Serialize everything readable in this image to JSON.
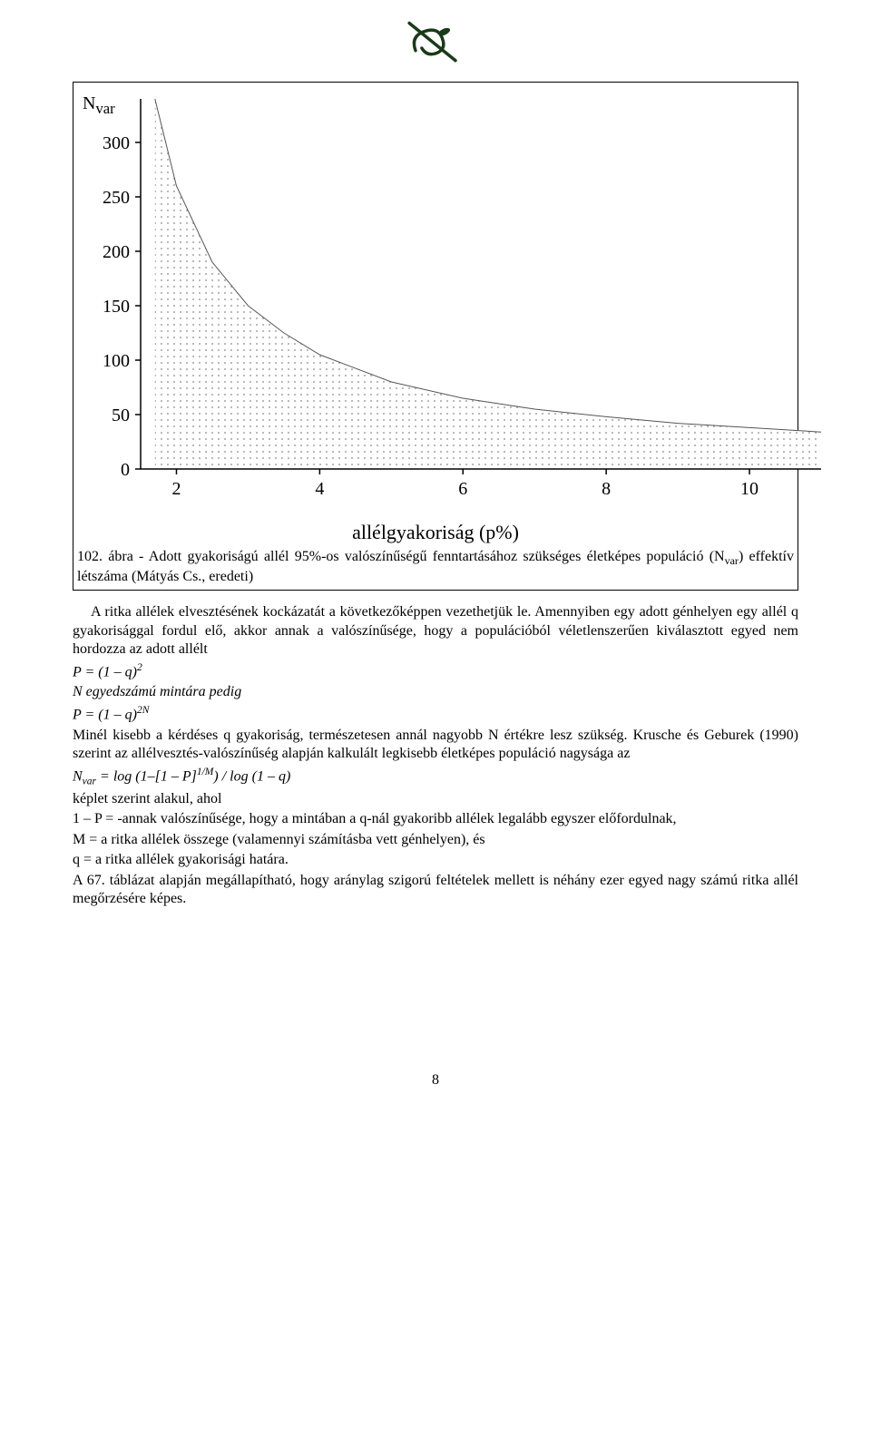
{
  "chart": {
    "type": "area",
    "ylabel_html": "N<sub>var</sub>",
    "xlabel": "allélgyakoriság (p%)",
    "x_ticks": [
      2,
      4,
      6,
      8,
      10
    ],
    "y_ticks": [
      0,
      50,
      100,
      150,
      200,
      250,
      300
    ],
    "xlim": [
      1.5,
      11
    ],
    "ylim": [
      0,
      340
    ],
    "curve_points": [
      {
        "x": 1.7,
        "y": 340
      },
      {
        "x": 2.0,
        "y": 260
      },
      {
        "x": 2.5,
        "y": 190
      },
      {
        "x": 3.0,
        "y": 150
      },
      {
        "x": 3.5,
        "y": 125
      },
      {
        "x": 4.0,
        "y": 105
      },
      {
        "x": 5.0,
        "y": 80
      },
      {
        "x": 6.0,
        "y": 65
      },
      {
        "x": 7.0,
        "y": 55
      },
      {
        "x": 8.0,
        "y": 48
      },
      {
        "x": 9.0,
        "y": 42
      },
      {
        "x": 10.0,
        "y": 38
      },
      {
        "x": 11.0,
        "y": 34
      }
    ],
    "fill_color": "#d9d9d9",
    "dot_color": "#888888",
    "axis_color": "#000000",
    "axis_width": 1.5,
    "tick_fontsize": 20,
    "label_fontsize": 22
  },
  "caption": {
    "prefix": "102. ábra - ",
    "text_html": "Adott gyakoriságú allél 95%-os valószínűségű fenntartásához szükséges életképes populáció (N<sub>var</sub>) effektív létszáma (Mátyás Cs., eredeti)"
  },
  "body": {
    "p1": "A ritka allélek elvesztésének kockázatát a következőképpen vezethetjük le. Amennyiben egy adott génhelyen egy allél q gyakorisággal fordul elő, akkor annak a valószínűsége, hogy a populációból véletlenszerűen kiválasztott egyed nem hordozza az adott allélt",
    "f1_html": "P = (1 – q)<sup>2</sup>",
    "p2": "N egyedszámú mintára pedig",
    "f2_html": "P = (1 – q)<sup>2N</sup>",
    "p3": "Minél kisebb a kérdéses q gyakoriság, természetesen annál nagyobb N értékre lesz szükség. Krusche és Geburek (1990) szerint az allélvesztés-valószínűség alapján kalkulált legkisebb életképes populáció nagysága az",
    "f3_html": "N<sub class=\"subvar\">var</sub> = log (1–[1 – P]<sup>1/M</sup>) / log (1 – q)",
    "p4": "képlet szerint alakul, ahol",
    "p5": "1 – P = -annak valószínűsége, hogy a mintában a q-nál gyakoribb allélek legalább egyszer előfordulnak,",
    "p6": "M = a ritka allélek összege (valamennyi számításba vett génhelyen), és",
    "p7": "q = a ritka allélek gyakorisági határa.",
    "p8": "A 67. táblázat alapján megállapítható, hogy aránylag szigorú feltételek mellett is néhány ezer egyed nagy számú ritka allél megőrzésére képes."
  },
  "page_number": "8"
}
